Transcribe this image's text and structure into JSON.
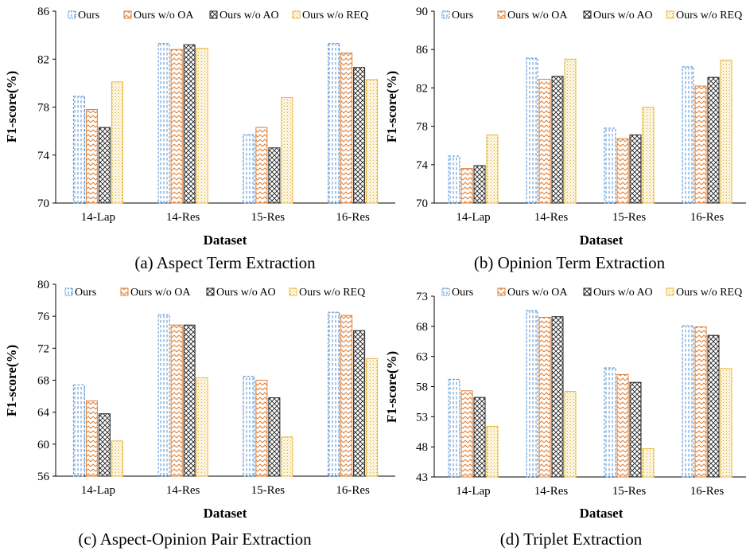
{
  "chart_data": [
    {
      "type": "bar",
      "caption": "(a) Aspect Term Extraction",
      "xlabel": "Dataset",
      "ylabel": "F1-score(%)",
      "categories": [
        "14-Lap",
        "14-Res",
        "15-Res",
        "16-Res"
      ],
      "ylim": [
        70,
        86
      ],
      "yticks": [
        "70",
        "74",
        "78",
        "82",
        "86"
      ],
      "grid": false,
      "legend_position": "top",
      "series": [
        {
          "name": "Ours",
          "values": [
            78.9,
            83.3,
            75.7,
            83.3
          ]
        },
        {
          "name": "Ours w/o OA",
          "values": [
            77.8,
            82.8,
            76.3,
            82.5
          ]
        },
        {
          "name": "Ours w/o AO",
          "values": [
            76.3,
            83.2,
            74.6,
            81.3
          ]
        },
        {
          "name": "Ours w/o REQ",
          "values": [
            80.1,
            82.9,
            78.8,
            80.3
          ]
        }
      ]
    },
    {
      "type": "bar",
      "caption": "(b) Opinion Term Extraction",
      "xlabel": "Dataset",
      "ylabel": "F1-score(%)",
      "categories": [
        "14-Lap",
        "14-Res",
        "15-Res",
        "16-Res"
      ],
      "ylim": [
        70,
        90
      ],
      "yticks": [
        "70",
        "74",
        "78",
        "82",
        "86",
        "90"
      ],
      "grid": false,
      "legend_position": "top",
      "series": [
        {
          "name": "Ours",
          "values": [
            74.9,
            85.1,
            77.8,
            84.2
          ]
        },
        {
          "name": "Ours w/o OA",
          "values": [
            73.6,
            82.9,
            76.7,
            82.2
          ]
        },
        {
          "name": "Ours w/o AO",
          "values": [
            73.9,
            83.2,
            77.1,
            83.1
          ]
        },
        {
          "name": "Ours w/o REQ",
          "values": [
            77.1,
            85.0,
            80.0,
            84.9
          ]
        }
      ]
    },
    {
      "type": "bar",
      "caption": "(c) Aspect-Opinion Pair Extraction",
      "xlabel": "Dataset",
      "ylabel": "F1-score(%)",
      "categories": [
        "14-Lap",
        "14-Res",
        "15-Res",
        "16-Res"
      ],
      "ylim": [
        56,
        80
      ],
      "yticks": [
        "56",
        "60",
        "64",
        "68",
        "72",
        "76",
        "80"
      ],
      "grid": false,
      "legend_position": "top",
      "series": [
        {
          "name": "Ours",
          "values": [
            67.4,
            76.2,
            68.5,
            76.5
          ]
        },
        {
          "name": "Ours w/o OA",
          "values": [
            65.4,
            74.9,
            68.0,
            76.1
          ]
        },
        {
          "name": "Ours w/o AO",
          "values": [
            63.8,
            74.9,
            65.8,
            74.2
          ]
        },
        {
          "name": "Ours w/o REQ",
          "values": [
            60.4,
            68.3,
            60.9,
            70.7
          ]
        }
      ]
    },
    {
      "type": "bar",
      "caption": "(d) Triplet Extraction",
      "xlabel": "Dataset",
      "ylabel": "F1-score(%)",
      "categories": [
        "14-Lap",
        "14-Res",
        "15-Res",
        "16-Res"
      ],
      "ylim": [
        43,
        73
      ],
      "yticks": [
        "43",
        "48",
        "53",
        "58",
        "63",
        "68",
        "73"
      ],
      "grid": false,
      "legend_position": "top",
      "series": [
        {
          "name": "Ours",
          "values": [
            59.2,
            70.6,
            61.1,
            68.1
          ]
        },
        {
          "name": "Ours w/o OA",
          "values": [
            57.3,
            69.5,
            60.0,
            67.9
          ]
        },
        {
          "name": "Ours w/o AO",
          "values": [
            56.2,
            69.6,
            58.7,
            66.5
          ]
        },
        {
          "name": "Ours w/o REQ",
          "values": [
            51.4,
            57.2,
            47.7,
            61.0
          ]
        }
      ]
    }
  ]
}
